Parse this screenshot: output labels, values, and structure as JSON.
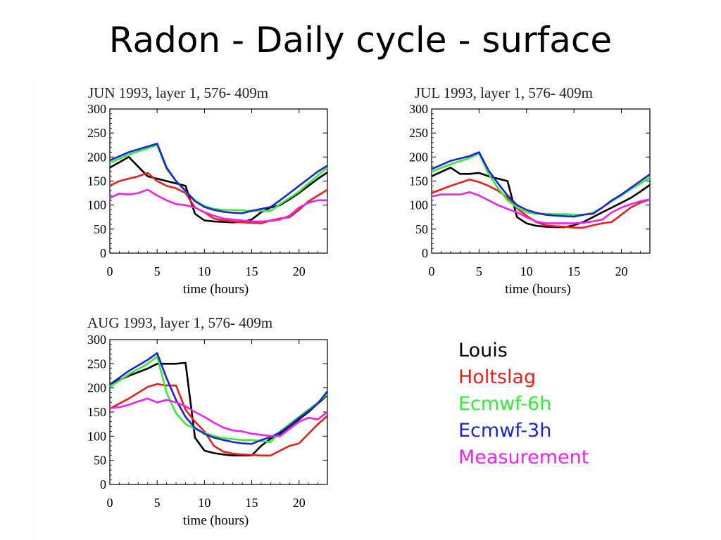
{
  "slide": {
    "title": "Radon - Daily cycle - surface"
  },
  "legend": [
    {
      "label": "Louis",
      "color": "#000000"
    },
    {
      "label": "Holtslag",
      "color": "#e8201a"
    },
    {
      "label": "Ecmwf-6h",
      "color": "#33ee33"
    },
    {
      "label": "Ecmwf-3h",
      "color": "#1e22d8"
    },
    {
      "label": "Measurement",
      "color": "#f020f0"
    }
  ],
  "chart_data": [
    {
      "type": "line",
      "title": "JUN 1993, layer   1,  576- 409m",
      "xlabel": "time (hours)",
      "ylabel": "",
      "xlim": [
        0,
        23
      ],
      "ylim": [
        0,
        300
      ],
      "xticks": [
        0,
        5,
        10,
        15,
        20
      ],
      "yticks": [
        0,
        50,
        100,
        150,
        200,
        250,
        300
      ],
      "series": [
        {
          "name": "Louis",
          "color": "#000000",
          "x": [
            0,
            2,
            4,
            5,
            6,
            7,
            8,
            9,
            10,
            11,
            12,
            13,
            14,
            15,
            16,
            17,
            18,
            19,
            20,
            21,
            22,
            23
          ],
          "y": [
            178,
            200,
            160,
            155,
            150,
            145,
            140,
            82,
            68,
            66,
            65,
            64,
            65,
            70,
            85,
            95,
            100,
            112,
            125,
            140,
            155,
            168
          ]
        },
        {
          "name": "Holtslag",
          "color": "#e8201a",
          "x": [
            0,
            1,
            3,
            4,
            5,
            6,
            7,
            8,
            9,
            10,
            11,
            12,
            13,
            14,
            15,
            16,
            17,
            18,
            19,
            20,
            21,
            22,
            23
          ],
          "y": [
            140,
            150,
            160,
            167,
            150,
            140,
            135,
            125,
            95,
            85,
            72,
            68,
            66,
            64,
            63,
            62,
            68,
            72,
            75,
            90,
            108,
            120,
            132
          ]
        },
        {
          "name": "Ecmwf-6h",
          "color": "#33ee33",
          "x": [
            0,
            2,
            5,
            6,
            7,
            8,
            9,
            10,
            11,
            12,
            13,
            14,
            15,
            16,
            17,
            18,
            19,
            20,
            21,
            22,
            23
          ],
          "y": [
            188,
            205,
            225,
            175,
            150,
            128,
            110,
            98,
            92,
            90,
            90,
            89,
            88,
            88,
            88,
            102,
            115,
            128,
            145,
            162,
            178
          ]
        },
        {
          "name": "Ecmwf-3h",
          "color": "#1e22d8",
          "x": [
            0,
            2,
            5,
            6,
            7,
            8,
            9,
            10,
            11,
            12,
            13,
            14,
            15,
            16,
            17,
            18,
            19,
            20,
            21,
            22,
            23
          ],
          "y": [
            193,
            210,
            228,
            178,
            150,
            130,
            108,
            96,
            90,
            86,
            84,
            83,
            88,
            92,
            96,
            110,
            125,
            140,
            155,
            170,
            182
          ]
        },
        {
          "name": "Measurement",
          "color": "#f020f0",
          "x": [
            0,
            1,
            2,
            3,
            4,
            5,
            6,
            7,
            8,
            9,
            10,
            11,
            12,
            13,
            14,
            15,
            16,
            17,
            18,
            19,
            20,
            21,
            22,
            23
          ],
          "y": [
            115,
            124,
            122,
            125,
            132,
            120,
            110,
            102,
            100,
            95,
            85,
            78,
            72,
            70,
            68,
            66,
            66,
            67,
            70,
            78,
            95,
            105,
            110,
            110
          ]
        }
      ]
    },
    {
      "type": "line",
      "title": "JUL 1993, layer   1,  576- 409m",
      "xlabel": "time (hours)",
      "ylabel": "",
      "xlim": [
        0,
        23
      ],
      "ylim": [
        0,
        300
      ],
      "xticks": [
        0,
        5,
        10,
        15,
        20
      ],
      "yticks": [
        0,
        50,
        100,
        150,
        200,
        250,
        300
      ],
      "series": [
        {
          "name": "Louis",
          "color": "#000000",
          "x": [
            0,
            2,
            3,
            4,
            5,
            6,
            7,
            8,
            9,
            10,
            11,
            12,
            13,
            14,
            15,
            16,
            17,
            18,
            19,
            20,
            21,
            22,
            23
          ],
          "y": [
            160,
            178,
            165,
            165,
            167,
            160,
            155,
            150,
            75,
            62,
            57,
            55,
            54,
            54,
            58,
            65,
            75,
            85,
            95,
            105,
            115,
            128,
            142
          ]
        },
        {
          "name": "Holtslag",
          "color": "#e8201a",
          "x": [
            0,
            2,
            4,
            5,
            6,
            7,
            8,
            9,
            10,
            11,
            12,
            13,
            14,
            15,
            16,
            17,
            18,
            19,
            20,
            21,
            22,
            23
          ],
          "y": [
            125,
            140,
            153,
            148,
            140,
            130,
            115,
            93,
            78,
            65,
            58,
            56,
            55,
            53,
            53,
            58,
            62,
            65,
            80,
            95,
            105,
            112
          ]
        },
        {
          "name": "Ecmwf-6h",
          "color": "#33ee33",
          "x": [
            0,
            2,
            4,
            5,
            6,
            7,
            8,
            9,
            10,
            11,
            12,
            13,
            14,
            15,
            16,
            17,
            18,
            19,
            20,
            21,
            22,
            23
          ],
          "y": [
            170,
            185,
            198,
            208,
            165,
            135,
            110,
            95,
            85,
            82,
            82,
            81,
            81,
            80,
            80,
            84,
            95,
            108,
            120,
            133,
            145,
            158
          ]
        },
        {
          "name": "Ecmwf-3h",
          "color": "#1e22d8",
          "x": [
            0,
            2,
            4,
            5,
            6,
            7,
            8,
            9,
            10,
            11,
            12,
            13,
            14,
            15,
            16,
            17,
            18,
            19,
            20,
            21,
            22,
            23
          ],
          "y": [
            175,
            192,
            202,
            210,
            172,
            145,
            120,
            100,
            90,
            84,
            80,
            78,
            77,
            76,
            80,
            82,
            95,
            110,
            122,
            136,
            150,
            164
          ]
        },
        {
          "name": "Measurement",
          "color": "#f020f0",
          "x": [
            0,
            1,
            2,
            3,
            4,
            5,
            6,
            7,
            8,
            9,
            10,
            11,
            12,
            13,
            14,
            15,
            16,
            17,
            18,
            19,
            20,
            21,
            22,
            23
          ],
          "y": [
            118,
            122,
            122,
            122,
            127,
            120,
            110,
            100,
            92,
            85,
            75,
            66,
            62,
            62,
            62,
            62,
            63,
            66,
            70,
            85,
            95,
            102,
            108,
            112
          ]
        }
      ]
    },
    {
      "type": "line",
      "title": "AUG 1993, layer   1,  576- 409m",
      "xlabel": "time (hours)",
      "ylabel": "",
      "xlim": [
        0,
        23
      ],
      "ylim": [
        0,
        300
      ],
      "xticks": [
        0,
        5,
        10,
        15,
        20
      ],
      "yticks": [
        0,
        50,
        100,
        150,
        200,
        250,
        300
      ],
      "series": [
        {
          "name": "Louis",
          "color": "#000000",
          "x": [
            0,
            2,
            4,
            5,
            6,
            7,
            8,
            9,
            10,
            11,
            12,
            13,
            14,
            15,
            16,
            17,
            18,
            19,
            20,
            21,
            22,
            23
          ],
          "y": [
            208,
            225,
            240,
            250,
            250,
            250,
            252,
            97,
            70,
            65,
            62,
            60,
            60,
            60,
            80,
            95,
            105,
            120,
            135,
            150,
            168,
            185
          ]
        },
        {
          "name": "Holtslag",
          "color": "#e8201a",
          "x": [
            0,
            2,
            4,
            5,
            6,
            7,
            8,
            9,
            10,
            11,
            12,
            13,
            14,
            15,
            16,
            17,
            18,
            19,
            20,
            21,
            22,
            23
          ],
          "y": [
            157,
            178,
            202,
            208,
            205,
            205,
            155,
            130,
            110,
            80,
            68,
            64,
            62,
            61,
            60,
            60,
            70,
            80,
            85,
            105,
            125,
            142
          ]
        },
        {
          "name": "Ecmwf-6h",
          "color": "#33ee33",
          "x": [
            0,
            2,
            4,
            5,
            6,
            7,
            8,
            9,
            10,
            11,
            12,
            13,
            14,
            15,
            16,
            17,
            18,
            19,
            20,
            21,
            22,
            23
          ],
          "y": [
            202,
            228,
            250,
            265,
            190,
            148,
            125,
            115,
            107,
            100,
            96,
            94,
            92,
            92,
            90,
            88,
            110,
            125,
            140,
            155,
            170,
            187
          ]
        },
        {
          "name": "Ecmwf-3h",
          "color": "#1e22d8",
          "x": [
            0,
            2,
            4,
            5,
            6,
            7,
            8,
            9,
            10,
            11,
            12,
            13,
            14,
            15,
            16,
            17,
            18,
            19,
            20,
            21,
            22,
            23
          ],
          "y": [
            207,
            235,
            258,
            272,
            220,
            175,
            140,
            117,
            105,
            97,
            92,
            88,
            85,
            84,
            92,
            98,
            108,
            122,
            138,
            152,
            168,
            193
          ]
        },
        {
          "name": "Measurement",
          "color": "#f020f0",
          "x": [
            0,
            1,
            2,
            3,
            4,
            5,
            6,
            7,
            8,
            9,
            10,
            11,
            12,
            13,
            14,
            15,
            16,
            17,
            18,
            19,
            20,
            21,
            22,
            23
          ],
          "y": [
            158,
            160,
            165,
            172,
            178,
            170,
            175,
            170,
            162,
            150,
            140,
            128,
            118,
            112,
            110,
            105,
            103,
            100,
            100,
            115,
            130,
            138,
            135,
            150
          ]
        }
      ]
    }
  ]
}
